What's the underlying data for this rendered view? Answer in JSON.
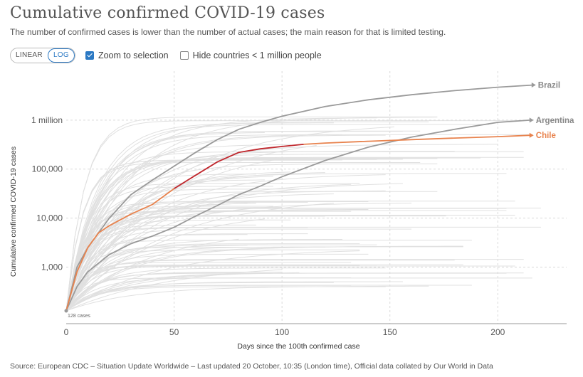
{
  "header": {
    "title": "Cumulative confirmed COVID-19 cases",
    "subtitle": "The number of confirmed cases is lower than the number of actual cases; the main reason for that is limited testing."
  },
  "controls": {
    "scale_linear": "LINEAR",
    "scale_log": "LOG",
    "active_scale": "LOG",
    "zoom_label": "Zoom to selection",
    "zoom_checked": true,
    "hide_label": "Hide countries < 1 million people",
    "hide_checked": false
  },
  "footer": {
    "source": "Source: European CDC – Situation Update Worldwide – Last updated 20 October, 10:35 (London time), Official data collated by Our World in Data"
  },
  "chart_data": {
    "type": "line",
    "xlabel": "Days since the 100th confirmed case",
    "ylabel": "Cumulative confirmed COVID-19 cases",
    "yscale": "log",
    "xlim": [
      0,
      222
    ],
    "ylim": [
      70,
      10000000
    ],
    "x_ticks": [
      0,
      50,
      100,
      150,
      200
    ],
    "x_tick_labels": [
      "0",
      "50",
      "100",
      "150",
      "200"
    ],
    "y_ticks": [
      1000,
      10000,
      100000,
      1000000
    ],
    "y_tick_labels": [
      "1,000",
      "10,000",
      "100,000",
      "1 million"
    ],
    "start_label": "128 cases",
    "grid": true,
    "highlight_colors": {
      "Brazil": "#9a9a9a",
      "Argentina": "#9a9a9a",
      "Chile": "#e8834e",
      "Chile_peak": "#c0272d",
      "background": "#dcdcdc"
    },
    "series": [
      {
        "name": "Brazil",
        "x": [
          0,
          5,
          10,
          20,
          30,
          40,
          50,
          60,
          70,
          80,
          90,
          100,
          120,
          140,
          160,
          180,
          200,
          216
        ],
        "y": [
          128,
          1000,
          2500,
          10000,
          30000,
          60000,
          115000,
          220000,
          400000,
          650000,
          900000,
          1200000,
          1900000,
          2600000,
          3300000,
          4000000,
          4700000,
          5200000
        ]
      },
      {
        "name": "Argentina",
        "x": [
          0,
          5,
          10,
          20,
          30,
          40,
          50,
          60,
          70,
          80,
          90,
          100,
          120,
          140,
          160,
          180,
          200,
          215
        ],
        "y": [
          128,
          400,
          800,
          1800,
          3000,
          4300,
          6500,
          11000,
          18000,
          30000,
          45000,
          70000,
          150000,
          280000,
          450000,
          650000,
          900000,
          1000000
        ]
      },
      {
        "name": "Chile",
        "x": [
          0,
          5,
          10,
          15,
          20,
          30,
          40,
          50,
          60,
          70,
          80,
          90,
          100,
          110,
          120,
          140,
          160,
          180,
          200,
          215
        ],
        "y": [
          128,
          800,
          2500,
          5000,
          7000,
          12000,
          19000,
          40000,
          75000,
          140000,
          220000,
          260000,
          290000,
          320000,
          340000,
          370000,
          400000,
          430000,
          460000,
          490000
        ]
      }
    ]
  }
}
